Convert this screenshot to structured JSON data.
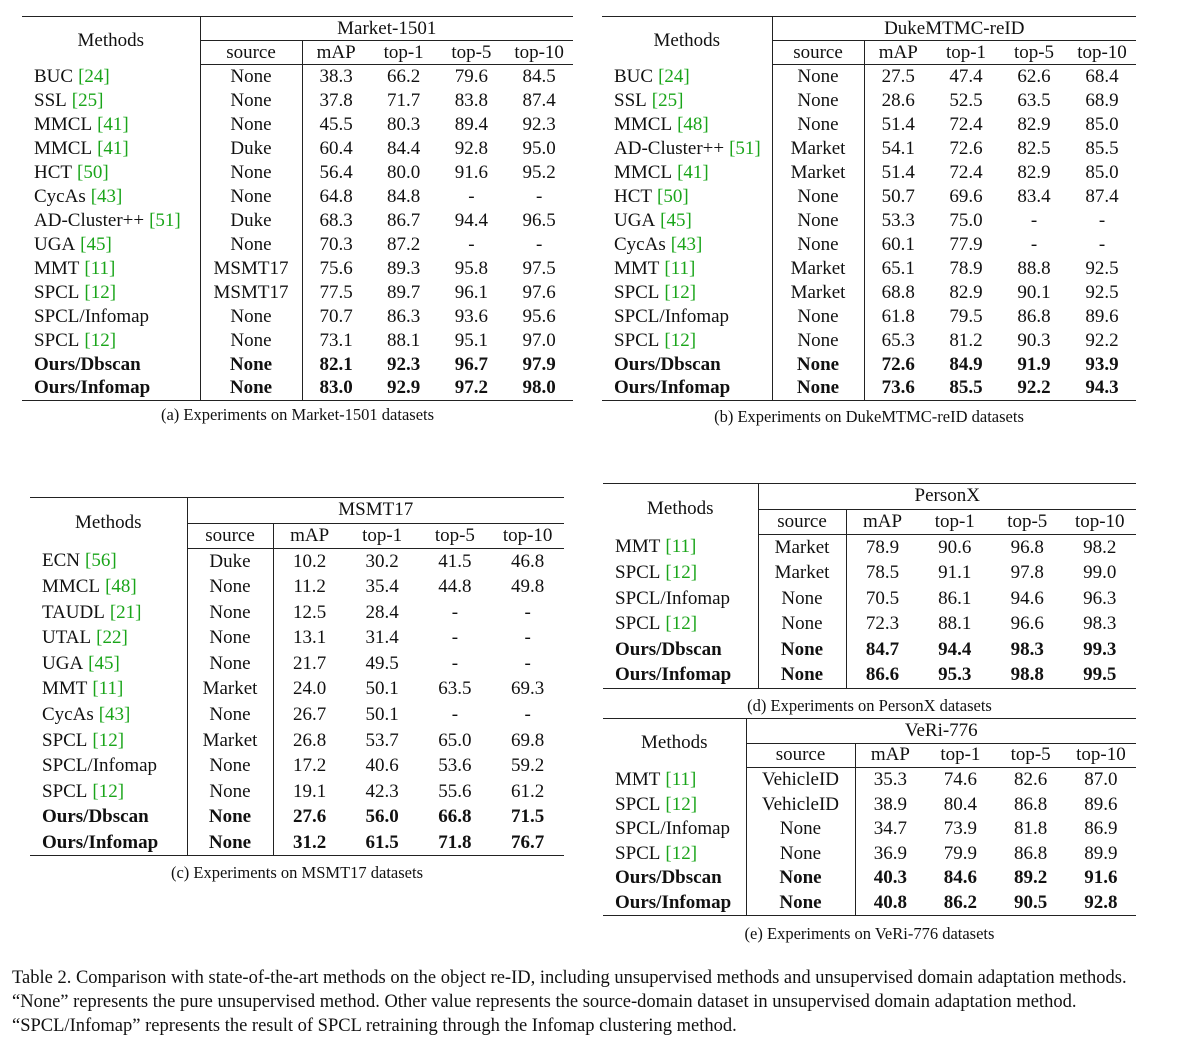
{
  "tables": [
    {
      "title": "Market-1501",
      "caption": "(a) Experiments on Market-1501 datasets",
      "methods_header": "Methods",
      "columns": [
        "source",
        "mAP",
        "top-1",
        "top-5",
        "top-10"
      ],
      "rows": [
        {
          "method": "BUC",
          "cite": "[24]",
          "cells": [
            "None",
            "38.3",
            "66.2",
            "79.6",
            "84.5"
          ]
        },
        {
          "method": "SSL",
          "cite": "[25]",
          "cells": [
            "None",
            "37.8",
            "71.7",
            "83.8",
            "87.4"
          ]
        },
        {
          "method": "MMCL",
          "cite": "[41]",
          "cells": [
            "None",
            "45.5",
            "80.3",
            "89.4",
            "92.3"
          ]
        },
        {
          "method": "MMCL",
          "cite": "[41]",
          "cells": [
            "Duke",
            "60.4",
            "84.4",
            "92.8",
            "95.0"
          ]
        },
        {
          "method": "HCT",
          "cite": "[50]",
          "cells": [
            "None",
            "56.4",
            "80.0",
            "91.6",
            "95.2"
          ]
        },
        {
          "method": "CycAs",
          "cite": "[43]",
          "cells": [
            "None",
            "64.8",
            "84.8",
            "-",
            "-"
          ]
        },
        {
          "method": "AD-Cluster++",
          "cite": "[51]",
          "cells": [
            "Duke",
            "68.3",
            "86.7",
            "94.4",
            "96.5"
          ]
        },
        {
          "method": "UGA",
          "cite": "[45]",
          "cells": [
            "None",
            "70.3",
            "87.2",
            "-",
            "-"
          ]
        },
        {
          "method": "MMT",
          "cite": "[11]",
          "cells": [
            "MSMT17",
            "75.6",
            "89.3",
            "95.8",
            "97.5"
          ]
        },
        {
          "method": "SPCL",
          "cite": "[12]",
          "cells": [
            "MSMT17",
            "77.5",
            "89.7",
            "96.1",
            "97.6"
          ]
        },
        {
          "method": "SPCL/Infomap",
          "cells": [
            "None",
            "70.7",
            "86.3",
            "93.6",
            "95.6"
          ]
        },
        {
          "method": "SPCL",
          "cite": "[12]",
          "cells": [
            "None",
            "73.1",
            "88.1",
            "95.1",
            "97.0"
          ]
        },
        {
          "method": "Ours/Dbscan",
          "bold": true,
          "cells": [
            "None",
            "82.1",
            "92.3",
            "96.7",
            "97.9"
          ]
        },
        {
          "method": "Ours/Infomap",
          "bold": true,
          "cells": [
            "None",
            "83.0",
            "92.9",
            "97.2",
            "98.0"
          ]
        }
      ]
    },
    {
      "title": "DukeMTMC-reID",
      "caption": "(b) Experiments on DukeMTMC-reID datasets",
      "methods_header": "Methods",
      "columns": [
        "source",
        "mAP",
        "top-1",
        "top-5",
        "top-10"
      ],
      "rows": [
        {
          "method": "BUC",
          "cite": "[24]",
          "cells": [
            "None",
            "27.5",
            "47.4",
            "62.6",
            "68.4"
          ]
        },
        {
          "method": "SSL",
          "cite": "[25]",
          "cells": [
            "None",
            "28.6",
            "52.5",
            "63.5",
            "68.9"
          ]
        },
        {
          "method": "MMCL",
          "cite": "[48]",
          "cells": [
            "None",
            "51.4",
            "72.4",
            "82.9",
            "85.0"
          ]
        },
        {
          "method": "AD-Cluster++",
          "cite": "[51]",
          "cells": [
            "Market",
            "54.1",
            "72.6",
            "82.5",
            "85.5"
          ]
        },
        {
          "method": "MMCL",
          "cite": "[41]",
          "cells": [
            "Market",
            "51.4",
            "72.4",
            "82.9",
            "85.0"
          ]
        },
        {
          "method": "HCT",
          "cite": "[50]",
          "cells": [
            "None",
            "50.7",
            "69.6",
            "83.4",
            "87.4"
          ]
        },
        {
          "method": "UGA",
          "cite": "[45]",
          "cells": [
            "None",
            "53.3",
            "75.0",
            "-",
            "-"
          ]
        },
        {
          "method": "CycAs",
          "cite": "[43]",
          "cells": [
            "None",
            "60.1",
            "77.9",
            "-",
            "-"
          ]
        },
        {
          "method": "MMT",
          "cite": "[11]",
          "cells": [
            "Market",
            "65.1",
            "78.9",
            "88.8",
            "92.5"
          ]
        },
        {
          "method": "SPCL",
          "cite": "[12]",
          "cells": [
            "Market",
            "68.8",
            "82.9",
            "90.1",
            "92.5"
          ]
        },
        {
          "method": "SPCL/Infomap",
          "cells": [
            "None",
            "61.8",
            "79.5",
            "86.8",
            "89.6"
          ]
        },
        {
          "method": "SPCL",
          "cite": "[12]",
          "cells": [
            "None",
            "65.3",
            "81.2",
            "90.3",
            "92.2"
          ]
        },
        {
          "method": "Ours/Dbscan",
          "bold": true,
          "cells": [
            "None",
            "72.6",
            "84.9",
            "91.9",
            "93.9"
          ]
        },
        {
          "method": "Ours/Infomap",
          "bold": true,
          "cells": [
            "None",
            "73.6",
            "85.5",
            "92.2",
            "94.3"
          ]
        }
      ]
    },
    {
      "title": "MSMT17",
      "caption": "(c) Experiments on MSMT17 datasets",
      "methods_header": "Methods",
      "columns": [
        "source",
        "mAP",
        "top-1",
        "top-5",
        "top-10"
      ],
      "rows": [
        {
          "method": "ECN",
          "cite": "[56]",
          "cells": [
            "Duke",
            "10.2",
            "30.2",
            "41.5",
            "46.8"
          ]
        },
        {
          "method": "MMCL",
          "cite": "[48]",
          "cells": [
            "None",
            "11.2",
            "35.4",
            "44.8",
            "49.8"
          ]
        },
        {
          "method": "TAUDL",
          "cite": "[21]",
          "cells": [
            "None",
            "12.5",
            "28.4",
            "-",
            "-"
          ]
        },
        {
          "method": "UTAL",
          "cite": "[22]",
          "cells": [
            "None",
            "13.1",
            "31.4",
            "-",
            "-"
          ]
        },
        {
          "method": "UGA",
          "cite": "[45]",
          "cells": [
            "None",
            "21.7",
            "49.5",
            "-",
            "-"
          ]
        },
        {
          "method": "MMT",
          "cite": "[11]",
          "cells": [
            "Market",
            "24.0",
            "50.1",
            "63.5",
            "69.3"
          ]
        },
        {
          "method": "CycAs",
          "cite": "[43]",
          "cells": [
            "None",
            "26.7",
            "50.1",
            "-",
            "-"
          ]
        },
        {
          "method": "SPCL",
          "cite": "[12]",
          "cells": [
            "Market",
            "26.8",
            "53.7",
            "65.0",
            "69.8"
          ]
        },
        {
          "method": "SPCL/Infomap",
          "cells": [
            "None",
            "17.2",
            "40.6",
            "53.6",
            "59.2"
          ]
        },
        {
          "method": "SPCL",
          "cite": "[12]",
          "cells": [
            "None",
            "19.1",
            "42.3",
            "55.6",
            "61.2"
          ]
        },
        {
          "method": "Ours/Dbscan",
          "bold": true,
          "cells": [
            "None",
            "27.6",
            "56.0",
            "66.8",
            "71.5"
          ]
        },
        {
          "method": "Ours/Infomap",
          "bold": true,
          "cells": [
            "None",
            "31.2",
            "61.5",
            "71.8",
            "76.7"
          ]
        }
      ]
    },
    {
      "title": "PersonX",
      "caption": "(d) Experiments on PersonX datasets",
      "methods_header": "Methods",
      "columns": [
        "source",
        "mAP",
        "top-1",
        "top-5",
        "top-10"
      ],
      "rows": [
        {
          "method": "MMT",
          "cite": "[11]",
          "cells": [
            "Market",
            "78.9",
            "90.6",
            "96.8",
            "98.2"
          ]
        },
        {
          "method": "SPCL",
          "cite": "[12]",
          "cells": [
            "Market",
            "78.5",
            "91.1",
            "97.8",
            "99.0"
          ]
        },
        {
          "method": "SPCL/Infomap",
          "cells": [
            "None",
            "70.5",
            "86.1",
            "94.6",
            "96.3"
          ]
        },
        {
          "method": "SPCL",
          "cite": "[12]",
          "cells": [
            "None",
            "72.3",
            "88.1",
            "96.6",
            "98.3"
          ]
        },
        {
          "method": "Ours/Dbscan",
          "bold": true,
          "cells": [
            "None",
            "84.7",
            "94.4",
            "98.3",
            "99.3"
          ]
        },
        {
          "method": "Ours/Infomap",
          "bold": true,
          "cells": [
            "None",
            "86.6",
            "95.3",
            "98.8",
            "99.5"
          ]
        }
      ]
    },
    {
      "title": "VeRi-776",
      "caption": "(e) Experiments on VeRi-776 datasets",
      "methods_header": "Methods",
      "columns": [
        "source",
        "mAP",
        "top-1",
        "top-5",
        "top-10"
      ],
      "rows": [
        {
          "method": "MMT",
          "cite": "[11]",
          "cells": [
            "VehicleID",
            "35.3",
            "74.6",
            "82.6",
            "87.0"
          ]
        },
        {
          "method": "SPCL",
          "cite": "[12]",
          "cells": [
            "VehicleID",
            "38.9",
            "80.4",
            "86.8",
            "89.6"
          ]
        },
        {
          "method": "SPCL/Infomap",
          "cells": [
            "None",
            "34.7",
            "73.9",
            "81.8",
            "86.9"
          ]
        },
        {
          "method": "SPCL",
          "cite": "[12]",
          "cells": [
            "None",
            "36.9",
            "79.9",
            "86.8",
            "89.9"
          ]
        },
        {
          "method": "Ours/Dbscan",
          "bold": true,
          "cells": [
            "None",
            "40.3",
            "84.6",
            "89.2",
            "91.6"
          ]
        },
        {
          "method": "Ours/Infomap",
          "bold": true,
          "cells": [
            "None",
            "40.8",
            "86.2",
            "90.5",
            "92.8"
          ]
        }
      ]
    }
  ],
  "caption": "Table 2. Comparison with state-of-the-art methods on the object re-ID, including unsupervised methods and unsupervised domain adaptation methods. “None” represents the pure unsupervised method. Other value represents the source-domain dataset in unsupervised domain adaptation method. “SPCL/Infomap” represents the result of SPCL retraining through the Infomap clustering method."
}
